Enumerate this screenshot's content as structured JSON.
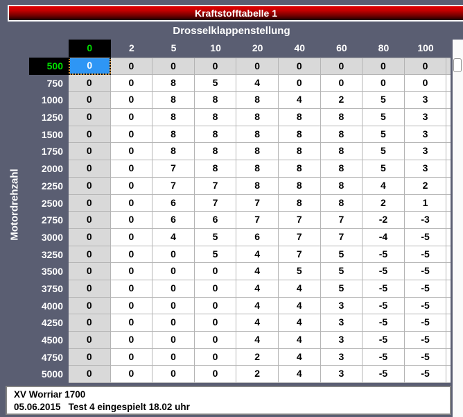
{
  "title_bar": {
    "label": "Kraftstofftabelle 1"
  },
  "table": {
    "column_axis_label": "Drosselklappenstellung",
    "row_axis_label": "Motordrehzahl",
    "columns": [
      "0",
      "2",
      "5",
      "10",
      "20",
      "40",
      "60",
      "80",
      "100"
    ],
    "rows": [
      {
        "rpm": "500",
        "values": [
          "0",
          "0",
          "0",
          "0",
          "0",
          "0",
          "0",
          "0",
          "0"
        ]
      },
      {
        "rpm": "750",
        "values": [
          "0",
          "0",
          "8",
          "5",
          "4",
          "0",
          "0",
          "0",
          "0"
        ]
      },
      {
        "rpm": "1000",
        "values": [
          "0",
          "0",
          "8",
          "8",
          "8",
          "4",
          "2",
          "5",
          "3"
        ]
      },
      {
        "rpm": "1250",
        "values": [
          "0",
          "0",
          "8",
          "8",
          "8",
          "8",
          "8",
          "5",
          "3"
        ]
      },
      {
        "rpm": "1500",
        "values": [
          "0",
          "0",
          "8",
          "8",
          "8",
          "8",
          "8",
          "5",
          "3"
        ]
      },
      {
        "rpm": "1750",
        "values": [
          "0",
          "0",
          "8",
          "8",
          "8",
          "8",
          "8",
          "5",
          "3"
        ]
      },
      {
        "rpm": "2000",
        "values": [
          "0",
          "0",
          "7",
          "8",
          "8",
          "8",
          "8",
          "5",
          "3"
        ]
      },
      {
        "rpm": "2250",
        "values": [
          "0",
          "0",
          "7",
          "7",
          "8",
          "8",
          "8",
          "4",
          "2"
        ]
      },
      {
        "rpm": "2500",
        "values": [
          "0",
          "0",
          "6",
          "7",
          "7",
          "8",
          "8",
          "2",
          "1"
        ]
      },
      {
        "rpm": "2750",
        "values": [
          "0",
          "0",
          "6",
          "6",
          "7",
          "7",
          "7",
          "-2",
          "-3"
        ]
      },
      {
        "rpm": "3000",
        "values": [
          "0",
          "0",
          "4",
          "5",
          "6",
          "7",
          "7",
          "-4",
          "-5"
        ]
      },
      {
        "rpm": "3250",
        "values": [
          "0",
          "0",
          "0",
          "5",
          "4",
          "7",
          "5",
          "-5",
          "-5"
        ]
      },
      {
        "rpm": "3500",
        "values": [
          "0",
          "0",
          "0",
          "0",
          "4",
          "5",
          "5",
          "-5",
          "-5"
        ]
      },
      {
        "rpm": "3750",
        "values": [
          "0",
          "0",
          "0",
          "0",
          "4",
          "4",
          "5",
          "-5",
          "-5"
        ]
      },
      {
        "rpm": "4000",
        "values": [
          "0",
          "0",
          "0",
          "0",
          "4",
          "4",
          "3",
          "-5",
          "-5"
        ]
      },
      {
        "rpm": "4250",
        "values": [
          "0",
          "0",
          "0",
          "0",
          "4",
          "4",
          "3",
          "-5",
          "-5"
        ]
      },
      {
        "rpm": "4500",
        "values": [
          "0",
          "0",
          "0",
          "0",
          "4",
          "4",
          "3",
          "-5",
          "-5"
        ]
      },
      {
        "rpm": "4750",
        "values": [
          "0",
          "0",
          "0",
          "0",
          "2",
          "4",
          "3",
          "-5",
          "-5"
        ]
      },
      {
        "rpm": "5000",
        "values": [
          "0",
          "0",
          "0",
          "0",
          "2",
          "4",
          "3",
          "-5",
          "-5"
        ]
      }
    ],
    "selected_cell": {
      "row_index": 0,
      "col_index": 0,
      "value": "0"
    }
  },
  "footer": {
    "line1": "XV Worriar 1700",
    "line2_date": "05.06.2015",
    "line2_note": "Test 4 eingespielt 18.02 uhr"
  },
  "colors": {
    "background": "#5a5e72",
    "title_red_top": "#e00000",
    "title_red_bottom": "#1a0000",
    "selected_cell_blue": "#2e96f5",
    "selected_header_text_green": "#00dc00",
    "crosshair_highlight_gray": "#d9d9d9",
    "gridline": "#b4b4b4"
  }
}
